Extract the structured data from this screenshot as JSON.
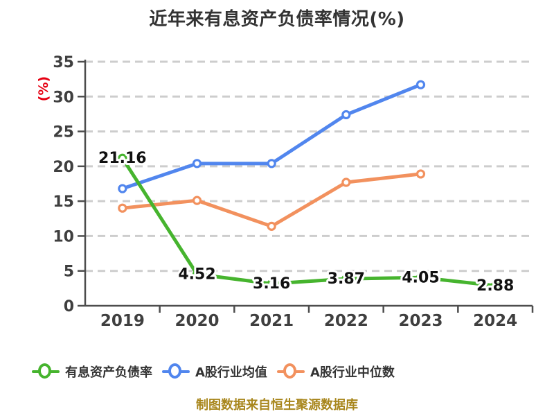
{
  "title": "近年来有息资产负债率情况(%)",
  "y_axis_unit_label": "(%)",
  "footer_note": "制图数据来自恒生聚源数据库",
  "colors": {
    "background": "#ffffff",
    "title_text": "#333333",
    "axis_text": "#3f3f3f",
    "axis_line": "#4d4d4d",
    "gridline": "#cdcdcd",
    "y_unit_label": "#e60012",
    "footer_text": "#a8861c",
    "data_label_text": "#111111",
    "marker_fill": "#ffffff"
  },
  "chart_data": {
    "type": "line",
    "title": "近年来有息资产负债率情况(%)",
    "xlabel": "",
    "ylabel": "(%)",
    "categories": [
      "2019",
      "2020",
      "2021",
      "2022",
      "2023",
      "2024"
    ],
    "series": [
      {
        "name": "有息资产负债率",
        "color": "#46b42e",
        "values": [
          21.16,
          4.52,
          3.16,
          3.87,
          4.05,
          2.88
        ],
        "data_labels": [
          "21.16",
          "4.52",
          "3.16",
          "3.87",
          "4.05",
          "2.88"
        ]
      },
      {
        "name": "A股行业均值",
        "color": "#5186ee",
        "values": [
          16.8,
          20.4,
          20.4,
          27.4,
          31.7,
          null
        ],
        "data_labels": null
      },
      {
        "name": "A股行业中位数",
        "color": "#f2915e",
        "values": [
          14.0,
          15.1,
          11.4,
          17.7,
          18.9,
          null
        ],
        "data_labels": null
      }
    ],
    "ylim": [
      0,
      35
    ],
    "yticks": [
      0,
      5,
      10,
      15,
      20,
      25,
      30,
      35
    ],
    "grid": "horizontal-dashed",
    "legend_position": "bottom",
    "footnote": "制图数据来自恒生聚源数据库"
  }
}
